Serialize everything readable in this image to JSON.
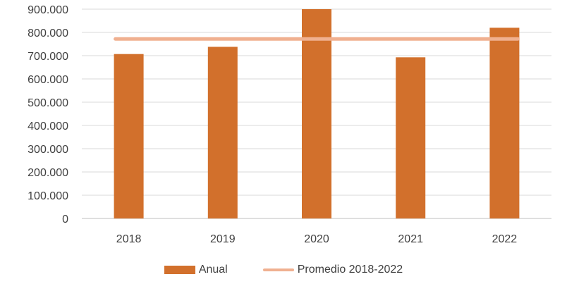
{
  "chart_data": {
    "type": "bar",
    "categories": [
      "2018",
      "2019",
      "2020",
      "2021",
      "2022"
    ],
    "series": [
      {
        "name": "Anual",
        "type": "bar",
        "color": "#d2702c",
        "values": [
          707000,
          738000,
          900000,
          693000,
          820000
        ]
      },
      {
        "name": "Promedio 2018-2022",
        "type": "line",
        "color": "#f0b090",
        "values": [
          772000,
          772000,
          772000,
          772000,
          772000
        ]
      }
    ],
    "y_ticks": [
      "0",
      "100.000",
      "200.000",
      "300.000",
      "400.000",
      "500.000",
      "600.000",
      "700.000",
      "800.000",
      "900.000"
    ],
    "ylim": [
      0,
      900000
    ],
    "grid": true,
    "legend_position": "bottom",
    "title": "",
    "xlabel": "",
    "ylabel": ""
  }
}
